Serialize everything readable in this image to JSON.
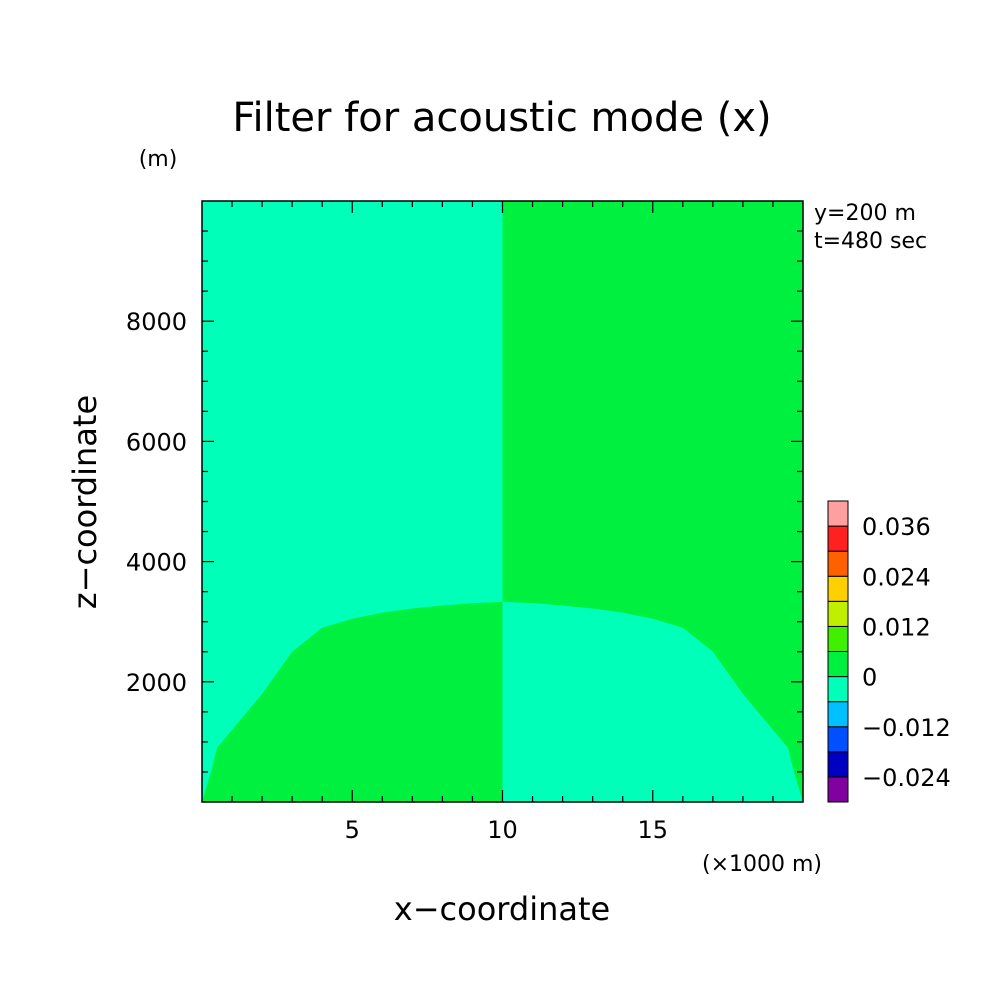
{
  "chart_data": {
    "type": "heatmap",
    "title": "Filter for acoustic mode (x)",
    "xlabel": "x−coordinate",
    "ylabel": "z−coordinate",
    "x_unit": "(×1000 m)",
    "y_unit": "(m)",
    "annotations": [
      "y=200 m",
      "t=480 sec"
    ],
    "xlim": [
      0,
      20
    ],
    "ylim": [
      0,
      10000
    ],
    "x_ticks": [
      5,
      10,
      15
    ],
    "x_tick_labels": [
      "5",
      "10",
      "15"
    ],
    "y_ticks": [
      2000,
      4000,
      6000,
      8000
    ],
    "y_tick_labels": [
      "2000",
      "4000",
      "6000",
      "8000"
    ],
    "colorbar": {
      "levels": [
        {
          "min": -0.03,
          "max": -0.024,
          "color": "#8000a0"
        },
        {
          "min": -0.024,
          "max": -0.018,
          "color": "#0000c0"
        },
        {
          "min": -0.018,
          "max": -0.012,
          "color": "#0050ff"
        },
        {
          "min": -0.012,
          "max": -0.006,
          "color": "#00c0ff"
        },
        {
          "min": -0.006,
          "max": 0,
          "color": "#00ffb8"
        },
        {
          "min": 0,
          "max": 0.006,
          "color": "#00f040"
        },
        {
          "min": 0.006,
          "max": 0.012,
          "color": "#40f000"
        },
        {
          "min": 0.012,
          "max": 0.018,
          "color": "#c0f000"
        },
        {
          "min": 0.018,
          "max": 0.024,
          "color": "#ffd000"
        },
        {
          "min": 0.024,
          "max": 0.03,
          "color": "#ff6000"
        },
        {
          "min": 0.03,
          "max": 0.036,
          "color": "#ff2020"
        },
        {
          "min": 0.036,
          "max": 0.042,
          "color": "#ffa0a0"
        }
      ],
      "tick_labels": [
        "−0.024",
        "−0.012",
        "0",
        "0.012",
        "0.024",
        "0.036"
      ],
      "tick_values": [
        -0.024,
        -0.012,
        0,
        0.012,
        0.024,
        0.036
      ]
    },
    "regions": [
      {
        "name": "left-upper",
        "level": "-0.006 to 0",
        "color": "#00ffb8",
        "x_range": [
          0,
          10
        ],
        "z_range": [
          0,
          10000
        ]
      },
      {
        "name": "left-lower-dome",
        "level": "0 to 0.006",
        "color": "#00f040",
        "boundary_x": [
          0,
          0.3,
          0.5,
          1,
          2,
          3,
          4,
          5,
          6,
          7,
          8,
          9,
          10
        ],
        "boundary_z": [
          0,
          500,
          900,
          1200,
          1800,
          2500,
          2900,
          3050,
          3150,
          3220,
          3270,
          3310,
          3330
        ]
      },
      {
        "name": "right-upper",
        "level": "0 to 0.006",
        "color": "#00f040",
        "x_range": [
          10,
          20
        ],
        "z_range": [
          0,
          10000
        ]
      },
      {
        "name": "right-lower-dome",
        "level": "-0.006 to 0",
        "color": "#00ffb8",
        "boundary_x": [
          10,
          11,
          12,
          13,
          14,
          15,
          16,
          17,
          18,
          19,
          19.5,
          19.7,
          20
        ],
        "boundary_z": [
          3330,
          3310,
          3270,
          3220,
          3150,
          3050,
          2900,
          2500,
          1800,
          1200,
          900,
          500,
          0
        ]
      }
    ]
  }
}
